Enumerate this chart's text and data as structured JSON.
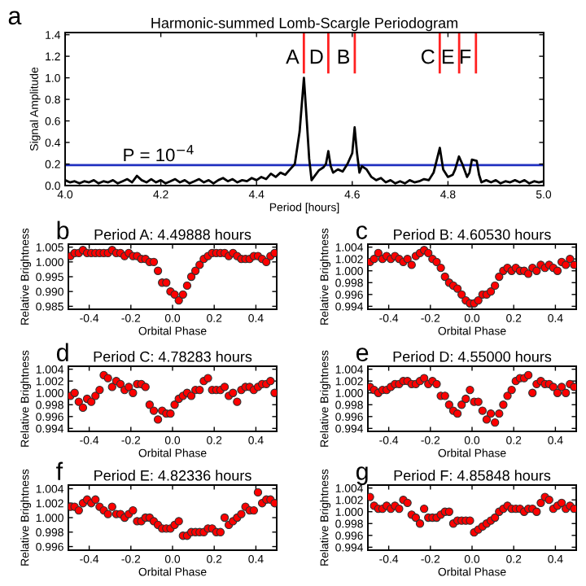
{
  "chart_data": [
    {
      "type": "line",
      "title": "Harmonic-summed Lomb-Scargle Periodogram",
      "xlabel": "Period [hours]",
      "ylabel": "Signal Amplitude",
      "annotations": [
        "a",
        {
          "text": "P = 10$^{−4}$",
          "x": 4.12,
          "y": 0.19
        }
      ],
      "x": [
        4.0,
        4.01,
        4.02,
        4.03,
        4.04,
        4.05,
        4.06,
        4.07,
        4.08,
        4.09,
        4.1,
        4.11,
        4.12,
        4.13,
        4.14,
        4.15,
        4.16,
        4.17,
        4.18,
        4.19,
        4.2,
        4.21,
        4.22,
        4.23,
        4.24,
        4.25,
        4.26,
        4.27,
        4.28,
        4.29,
        4.3,
        4.31,
        4.32,
        4.33,
        4.34,
        4.35,
        4.36,
        4.37,
        4.38,
        4.39,
        4.4,
        4.41,
        4.42,
        4.43,
        4.44,
        4.45,
        4.46,
        4.47,
        4.48,
        4.49,
        4.499,
        4.505,
        4.51,
        4.515,
        4.52,
        4.53,
        4.54,
        4.545,
        4.55,
        4.555,
        4.56,
        4.57,
        4.58,
        4.59,
        4.6,
        4.605,
        4.61,
        4.615,
        4.62,
        4.63,
        4.64,
        4.65,
        4.66,
        4.67,
        4.68,
        4.69,
        4.7,
        4.71,
        4.72,
        4.73,
        4.74,
        4.75,
        4.76,
        4.77,
        4.783,
        4.79,
        4.8,
        4.81,
        4.815,
        4.823,
        4.83,
        4.84,
        4.845,
        4.85,
        4.86,
        4.865,
        4.87,
        4.88,
        4.89,
        4.9,
        4.91,
        4.92,
        4.93,
        4.94,
        4.95,
        4.96,
        4.97,
        4.98,
        4.99,
        5.0
      ],
      "series": [
        {
          "color": "#000000",
          "values": [
            0.05,
            0.03,
            0.04,
            0.02,
            0.04,
            0.03,
            0.05,
            0.02,
            0.04,
            0.03,
            0.05,
            0.02,
            0.04,
            0.06,
            0.03,
            0.09,
            0.05,
            0.03,
            0.06,
            0.03,
            0.05,
            0.02,
            0.04,
            0.06,
            0.03,
            0.05,
            0.02,
            0.04,
            0.06,
            0.03,
            0.05,
            0.02,
            0.05,
            0.07,
            0.04,
            0.06,
            0.03,
            0.05,
            0.04,
            0.07,
            0.05,
            0.08,
            0.06,
            0.11,
            0.08,
            0.12,
            0.1,
            0.15,
            0.2,
            0.5,
            1.0,
            0.6,
            0.25,
            0.05,
            0.08,
            0.14,
            0.17,
            0.2,
            0.32,
            0.18,
            0.12,
            0.15,
            0.13,
            0.2,
            0.3,
            0.54,
            0.3,
            0.12,
            0.18,
            0.15,
            0.08,
            0.05,
            0.07,
            0.03,
            0.05,
            0.02,
            0.04,
            0.02,
            0.05,
            0.03,
            0.04,
            0.06,
            0.05,
            0.12,
            0.35,
            0.15,
            0.08,
            0.1,
            0.15,
            0.27,
            0.2,
            0.08,
            0.12,
            0.24,
            0.23,
            0.1,
            0.03,
            0.05,
            0.03,
            0.05,
            0.02,
            0.04,
            0.03,
            0.05,
            0.03,
            0.05,
            0.02,
            0.04,
            0.03,
            0.04
          ]
        }
      ],
      "xlim": [
        4.0,
        5.0
      ],
      "ylim": [
        0.0,
        1.42
      ],
      "xticks": [
        {
          "value": 4.0,
          "label": "4.0"
        },
        {
          "value": 4.2,
          "label": "4.2"
        },
        {
          "value": 4.4,
          "label": "4.4"
        },
        {
          "value": 4.6,
          "label": "4.6"
        },
        {
          "value": 4.8,
          "label": "4.8"
        },
        {
          "value": 5.0,
          "label": "5.0"
        }
      ],
      "yticks": [
        {
          "value": 0.0,
          "label": "0.0"
        },
        {
          "value": 0.2,
          "label": "0.2"
        },
        {
          "value": 0.4,
          "label": "0.4"
        },
        {
          "value": 0.6,
          "label": "0.6"
        },
        {
          "value": 0.8,
          "label": "0.8"
        },
        {
          "value": 1.0,
          "label": "1.0"
        },
        {
          "value": 1.2,
          "label": "1.2"
        },
        {
          "value": 1.4,
          "label": "1.4"
        }
      ],
      "ref_lines": [
        {
          "axis": "y",
          "value": 0.19,
          "color": "#2030c0"
        },
        {
          "axis": "x",
          "value": 4.49888,
          "label": "A",
          "color": "#ff2020"
        },
        {
          "axis": "x",
          "value": 4.55,
          "label": "D",
          "color": "#ff2020"
        },
        {
          "axis": "x",
          "value": 4.6053,
          "label": "B",
          "color": "#ff2020"
        },
        {
          "axis": "x",
          "value": 4.78283,
          "label": "C",
          "color": "#ff2020"
        },
        {
          "axis": "x",
          "value": 4.82336,
          "label": "E",
          "color": "#ff2020"
        },
        {
          "axis": "x",
          "value": 4.85848,
          "label": "F",
          "color": "#ff2020"
        }
      ]
    },
    {
      "type": "scatter",
      "title": "Period A: 4.49888 hours",
      "xlabel": "Orbital Phase",
      "ylabel": "Relative Brightness",
      "annotations": [
        "b"
      ],
      "marker": "circle",
      "x": [
        -0.49,
        -0.47,
        -0.45,
        -0.43,
        -0.41,
        -0.39,
        -0.37,
        -0.35,
        -0.33,
        -0.31,
        -0.29,
        -0.27,
        -0.25,
        -0.23,
        -0.21,
        -0.19,
        -0.17,
        -0.15,
        -0.13,
        -0.11,
        -0.09,
        -0.07,
        -0.05,
        -0.03,
        -0.01,
        0.01,
        0.03,
        0.05,
        0.07,
        0.09,
        0.11,
        0.13,
        0.15,
        0.17,
        0.19,
        0.21,
        0.23,
        0.25,
        0.27,
        0.29,
        0.31,
        0.33,
        0.35,
        0.37,
        0.39,
        0.41,
        0.43,
        0.45,
        0.47,
        0.49
      ],
      "series": [
        {
          "color": "#ff0000",
          "values": [
            1.002,
            1.003,
            1.003,
            1.004,
            1.003,
            1.003,
            1.003,
            1.003,
            1.003,
            1.003,
            1.004,
            1.003,
            1.003,
            1.002,
            1.003,
            1.002,
            1.002,
            1.001,
            1.001,
            1.0,
            1.0,
            0.997,
            0.993,
            0.993,
            0.99,
            0.989,
            0.987,
            0.989,
            0.992,
            0.995,
            0.997,
            0.999,
            1.001,
            1.002,
            1.003,
            1.003,
            1.003,
            1.003,
            1.002,
            1.003,
            1.002,
            1.001,
            1.001,
            1.001,
            1.002,
            1.002,
            1.001,
            1.0,
            1.002,
            1.003
          ]
        }
      ],
      "xlim": [
        -0.5,
        0.5
      ],
      "ylim": [
        0.984,
        1.006
      ],
      "xticks": [
        {
          "value": -0.4,
          "label": "-0.4"
        },
        {
          "value": -0.2,
          "label": "-0.2"
        },
        {
          "value": 0.0,
          "label": "0.0"
        },
        {
          "value": 0.2,
          "label": "0.2"
        },
        {
          "value": 0.4,
          "label": "0.4"
        }
      ],
      "yticks": [
        {
          "value": 0.985,
          "label": "0.985"
        },
        {
          "value": 0.99,
          "label": "0.990"
        },
        {
          "value": 0.995,
          "label": "0.995"
        },
        {
          "value": 1.0,
          "label": "1.000"
        },
        {
          "value": 1.005,
          "label": "1.005"
        }
      ]
    },
    {
      "type": "scatter",
      "title": "Period B: 4.60530 hours",
      "xlabel": "Orbital Phase",
      "ylabel": "Relative Brightness",
      "annotations": [
        "c"
      ],
      "marker": "circle",
      "x": [
        -0.49,
        -0.47,
        -0.45,
        -0.43,
        -0.41,
        -0.39,
        -0.37,
        -0.35,
        -0.33,
        -0.31,
        -0.29,
        -0.27,
        -0.25,
        -0.23,
        -0.21,
        -0.19,
        -0.17,
        -0.15,
        -0.13,
        -0.11,
        -0.09,
        -0.07,
        -0.05,
        -0.03,
        -0.01,
        0.01,
        0.03,
        0.05,
        0.07,
        0.09,
        0.11,
        0.13,
        0.15,
        0.17,
        0.19,
        0.21,
        0.23,
        0.25,
        0.27,
        0.29,
        0.31,
        0.33,
        0.35,
        0.37,
        0.39,
        0.41,
        0.43,
        0.45,
        0.47,
        0.49
      ],
      "series": [
        {
          "color": "#ff0000",
          "values": [
            1.0015,
            1.002,
            1.003,
            1.002,
            1.0025,
            1.002,
            1.0025,
            1.002,
            1.0015,
            1.002,
            1.001,
            1.0025,
            1.003,
            1.0035,
            1.003,
            1.002,
            1.0015,
            1.0005,
            0.999,
            0.998,
            0.9975,
            0.997,
            0.996,
            0.995,
            0.9945,
            0.9945,
            0.995,
            0.996,
            0.996,
            0.9965,
            0.9975,
            0.999,
            1.0,
            1.0005,
            1.0,
            1.0005,
            1.0,
            1.0,
            0.9995,
            1.0005,
            1.0,
            1.001,
            1.0005,
            1.001,
            1.0005,
            1.0,
            1.0015,
            1.001,
            1.002,
            1.001
          ]
        }
      ],
      "xlim": [
        -0.5,
        0.5
      ],
      "ylim": [
        0.9935,
        1.0045
      ],
      "xticks": [
        {
          "value": -0.4,
          "label": "-0.4"
        },
        {
          "value": -0.2,
          "label": "-0.2"
        },
        {
          "value": 0.0,
          "label": "0.0"
        },
        {
          "value": 0.2,
          "label": "0.2"
        },
        {
          "value": 0.4,
          "label": "0.4"
        }
      ],
      "yticks": [
        {
          "value": 0.994,
          "label": "0.994"
        },
        {
          "value": 0.996,
          "label": "0.996"
        },
        {
          "value": 0.998,
          "label": "0.998"
        },
        {
          "value": 1.0,
          "label": "1.000"
        },
        {
          "value": 1.002,
          "label": "1.002"
        },
        {
          "value": 1.004,
          "label": "1.004"
        }
      ]
    },
    {
      "type": "scatter",
      "title": "Period C: 4.78283 hours",
      "xlabel": "Orbital Phase",
      "ylabel": "Relative Brightness",
      "annotations": [
        "d"
      ],
      "marker": "circle",
      "x": [
        -0.49,
        -0.47,
        -0.45,
        -0.43,
        -0.41,
        -0.39,
        -0.37,
        -0.35,
        -0.33,
        -0.31,
        -0.29,
        -0.27,
        -0.25,
        -0.23,
        -0.21,
        -0.19,
        -0.17,
        -0.15,
        -0.13,
        -0.11,
        -0.09,
        -0.07,
        -0.05,
        -0.03,
        -0.01,
        0.01,
        0.03,
        0.05,
        0.07,
        0.09,
        0.11,
        0.13,
        0.15,
        0.17,
        0.19,
        0.21,
        0.23,
        0.25,
        0.27,
        0.29,
        0.31,
        0.33,
        0.35,
        0.37,
        0.39,
        0.41,
        0.43,
        0.45,
        0.47,
        0.49
      ],
      "series": [
        {
          "color": "#ff0000",
          "values": [
            0.9995,
            1.0,
            0.9985,
            0.9975,
            0.999,
            0.9985,
            0.9995,
            1.0005,
            1.003,
            1.0025,
            1.001,
            1.002,
            1.0015,
            1.0005,
            1.001,
            1.0,
            1.0015,
            1.0015,
            1.001,
            0.998,
            0.997,
            0.9955,
            0.997,
            0.9965,
            0.9965,
            0.998,
            0.999,
            0.9995,
            1.0,
            0.9995,
            1.0005,
            1.0005,
            1.002,
            1.0025,
            1.0005,
            1.0005,
            1.0005,
            1.001,
            0.9995,
            1.0,
            0.9985,
            1.0005,
            1.001,
            1.001,
            1.0005,
            1.001,
            1.0015,
            1.0015,
            1.002,
            1.0
          ]
        }
      ],
      "xlim": [
        -0.5,
        0.5
      ],
      "ylim": [
        0.9935,
        1.0045
      ],
      "xticks": [
        {
          "value": -0.4,
          "label": "-0.4"
        },
        {
          "value": -0.2,
          "label": "-0.2"
        },
        {
          "value": 0.0,
          "label": "0.0"
        },
        {
          "value": 0.2,
          "label": "0.2"
        },
        {
          "value": 0.4,
          "label": "0.4"
        }
      ],
      "yticks": [
        {
          "value": 0.994,
          "label": "0.994"
        },
        {
          "value": 0.996,
          "label": "0.996"
        },
        {
          "value": 0.998,
          "label": "0.998"
        },
        {
          "value": 1.0,
          "label": "1.000"
        },
        {
          "value": 1.002,
          "label": "1.002"
        },
        {
          "value": 1.004,
          "label": "1.004"
        }
      ]
    },
    {
      "type": "scatter",
      "title": "Period D: 4.55000 hours",
      "xlabel": "Orbital Phase",
      "ylabel": "Relative Brightness",
      "annotations": [
        "e"
      ],
      "marker": "circle",
      "x": [
        -0.49,
        -0.47,
        -0.45,
        -0.43,
        -0.41,
        -0.39,
        -0.37,
        -0.35,
        -0.33,
        -0.31,
        -0.29,
        -0.27,
        -0.25,
        -0.23,
        -0.21,
        -0.19,
        -0.17,
        -0.15,
        -0.13,
        -0.11,
        -0.09,
        -0.07,
        -0.05,
        -0.03,
        -0.01,
        0.01,
        0.03,
        0.05,
        0.07,
        0.09,
        0.11,
        0.13,
        0.15,
        0.17,
        0.19,
        0.21,
        0.23,
        0.25,
        0.27,
        0.29,
        0.31,
        0.33,
        0.35,
        0.37,
        0.39,
        0.41,
        0.43,
        0.45,
        0.47,
        0.49
      ],
      "series": [
        {
          "color": "#ff0000",
          "values": [
            1.001,
            1.0005,
            1.0,
            1.0005,
            1.0005,
            1.001,
            1.0015,
            1.0015,
            1.002,
            1.002,
            1.0015,
            1.0015,
            1.002,
            1.0025,
            1.0015,
            1.002,
            1.0015,
            0.9995,
            0.9995,
            0.998,
            0.997,
            0.9965,
            0.998,
            0.999,
            1.0005,
            0.9985,
            0.9985,
            0.997,
            0.9955,
            0.9965,
            0.995,
            0.9965,
            0.998,
            0.9995,
            1.0005,
            1.002,
            1.0025,
            1.0025,
            1.003,
            1.0,
            1.0015,
            1.002,
            1.0015,
            1.0015,
            1.001,
            1.0,
            1.001,
            1.0,
            1.0015,
            1.001
          ]
        }
      ],
      "xlim": [
        -0.5,
        0.5
      ],
      "ylim": [
        0.9935,
        1.0045
      ],
      "xticks": [
        {
          "value": -0.4,
          "label": "-0.4"
        },
        {
          "value": -0.2,
          "label": "-0.2"
        },
        {
          "value": 0.0,
          "label": "0.0"
        },
        {
          "value": 0.2,
          "label": "0.2"
        },
        {
          "value": 0.4,
          "label": "0.4"
        }
      ],
      "yticks": [
        {
          "value": 0.994,
          "label": "0.994"
        },
        {
          "value": 0.996,
          "label": "0.996"
        },
        {
          "value": 0.998,
          "label": "0.998"
        },
        {
          "value": 1.0,
          "label": "1.000"
        },
        {
          "value": 1.002,
          "label": "1.002"
        },
        {
          "value": 1.004,
          "label": "1.004"
        }
      ]
    },
    {
      "type": "scatter",
      "title": "Period E: 4.82336 hours",
      "xlabel": "Orbital Phase",
      "ylabel": "Relative Brightness",
      "annotations": [
        "f"
      ],
      "marker": "circle",
      "x": [
        -0.49,
        -0.47,
        -0.45,
        -0.43,
        -0.41,
        -0.39,
        -0.37,
        -0.35,
        -0.33,
        -0.31,
        -0.29,
        -0.27,
        -0.25,
        -0.23,
        -0.21,
        -0.19,
        -0.17,
        -0.15,
        -0.13,
        -0.11,
        -0.09,
        -0.07,
        -0.05,
        -0.03,
        -0.01,
        0.01,
        0.03,
        0.05,
        0.07,
        0.09,
        0.11,
        0.13,
        0.15,
        0.17,
        0.19,
        0.21,
        0.23,
        0.25,
        0.27,
        0.29,
        0.31,
        0.33,
        0.35,
        0.37,
        0.39,
        0.41,
        0.43,
        0.45,
        0.47,
        0.49
      ],
      "series": [
        {
          "color": "#ff0000",
          "values": [
            1.0015,
            1.0015,
            1.001,
            1.002,
            1.0025,
            1.002,
            1.0025,
            1.0015,
            1.001,
            1.0005,
            1.0015,
            1.0005,
            1.0005,
            1.0,
            1.0005,
            1.001,
            0.9995,
            0.9995,
            1.0,
            1.0,
            0.9995,
            0.999,
            0.9985,
            0.9985,
            0.9985,
            0.999,
            0.9995,
            0.9975,
            0.9975,
            0.998,
            0.998,
            0.998,
            0.998,
            0.9985,
            0.9985,
            0.998,
            0.998,
            1.0,
            0.999,
            0.9995,
            1.0,
            1.0005,
            1.0015,
            1.001,
            1.001,
            1.0035,
            1.002,
            1.0025,
            1.0025,
            1.002
          ]
        }
      ],
      "xlim": [
        -0.5,
        0.5
      ],
      "ylim": [
        0.9955,
        1.0045
      ],
      "xticks": [
        {
          "value": -0.4,
          "label": "-0.4"
        },
        {
          "value": -0.2,
          "label": "-0.2"
        },
        {
          "value": 0.0,
          "label": "0.0"
        },
        {
          "value": 0.2,
          "label": "0.2"
        },
        {
          "value": 0.4,
          "label": "0.4"
        }
      ],
      "yticks": [
        {
          "value": 0.996,
          "label": "0.996"
        },
        {
          "value": 0.998,
          "label": "0.998"
        },
        {
          "value": 1.0,
          "label": "1.000"
        },
        {
          "value": 1.002,
          "label": "1.002"
        },
        {
          "value": 1.004,
          "label": "1.004"
        }
      ]
    },
    {
      "type": "scatter",
      "title": "Period F: 4.85848 hours",
      "xlabel": "Orbital Phase",
      "ylabel": "Relative Brightness",
      "annotations": [
        "g"
      ],
      "marker": "circle",
      "x": [
        -0.49,
        -0.47,
        -0.45,
        -0.43,
        -0.41,
        -0.39,
        -0.37,
        -0.35,
        -0.33,
        -0.31,
        -0.29,
        -0.27,
        -0.25,
        -0.23,
        -0.21,
        -0.19,
        -0.17,
        -0.15,
        -0.13,
        -0.11,
        -0.09,
        -0.07,
        -0.05,
        -0.03,
        -0.01,
        0.01,
        0.03,
        0.05,
        0.07,
        0.09,
        0.11,
        0.13,
        0.15,
        0.17,
        0.19,
        0.21,
        0.23,
        0.25,
        0.27,
        0.29,
        0.31,
        0.33,
        0.35,
        0.37,
        0.39,
        0.41,
        0.43,
        0.45,
        0.47,
        0.49
      ],
      "series": [
        {
          "color": "#ff0000",
          "values": [
            1.0025,
            1.001,
            1.0005,
            1.0005,
            1.001,
            1.0005,
            1.001,
            1.0005,
            1.002,
            1.0015,
            0.9995,
            0.999,
            0.998,
            1.0005,
            0.999,
            0.999,
            0.999,
            0.9995,
            1.0,
            1.0,
            0.998,
            0.9985,
            0.9985,
            0.9985,
            0.9985,
            0.9965,
            0.997,
            0.9975,
            0.998,
            0.9985,
            0.999,
            1.0,
            1.0005,
            1.001,
            1.0005,
            1.0005,
            1.0005,
            1.0,
            1.0005,
            1.0005,
            1.0,
            1.0015,
            1.0025,
            1.002,
            1.0005,
            1.001,
            1.0015,
            1.0005,
            1.001,
            1.0005
          ]
        }
      ],
      "xlim": [
        -0.5,
        0.5
      ],
      "ylim": [
        0.9935,
        1.0045
      ],
      "xticks": [
        {
          "value": -0.4,
          "label": "-0.4"
        },
        {
          "value": -0.2,
          "label": "-0.2"
        },
        {
          "value": 0.0,
          "label": "0.0"
        },
        {
          "value": 0.2,
          "label": "0.2"
        },
        {
          "value": 0.4,
          "label": "0.4"
        }
      ],
      "yticks": [
        {
          "value": 0.994,
          "label": "0.994"
        },
        {
          "value": 0.996,
          "label": "0.996"
        },
        {
          "value": 0.998,
          "label": "0.998"
        },
        {
          "value": 1.0,
          "label": "1.000"
        },
        {
          "value": 1.002,
          "label": "1.002"
        },
        {
          "value": 1.004,
          "label": "1.004"
        }
      ]
    }
  ]
}
